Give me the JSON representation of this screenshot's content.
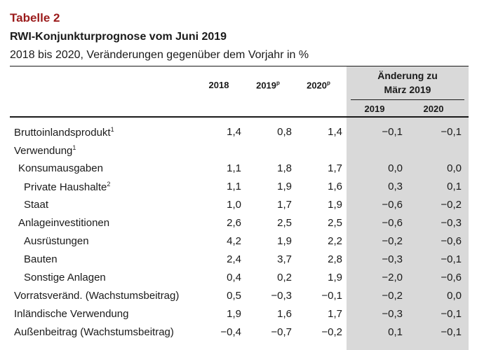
{
  "table_label": "Tabelle 2",
  "title": "RWI-Konjunkturprognose vom Juni 2019",
  "subtitle": "2018 bis 2020, Veränderungen gegenüber dem Vorjahr in %",
  "columns": {
    "y2018": "2018",
    "y2019": "2019",
    "y2019_sup": "p",
    "y2020": "2020",
    "y2020_sup": "p",
    "change_line1": "Änderung zu",
    "change_line2": "März 2019",
    "change_2019": "2019",
    "change_2020": "2020"
  },
  "rows": [
    {
      "label": "Bruttoinlandsprodukt",
      "sup": "1",
      "v2018": "1,4",
      "v2019": "0,8",
      "v2020": "1,4",
      "c2019": "−0,1",
      "c2020": "−0,1"
    },
    {
      "label": "Verwendung",
      "sup": "1",
      "v2018": "",
      "v2019": "",
      "v2020": "",
      "c2019": "",
      "c2020": ""
    },
    {
      "label": "Konsumausgaben",
      "sup": "",
      "v2018": "1,1",
      "v2019": "1,8",
      "v2020": "1,7",
      "c2019": "0,0",
      "c2020": "0,0"
    },
    {
      "label": "Private Haushalte",
      "sup": "2",
      "v2018": "1,1",
      "v2019": "1,9",
      "v2020": "1,6",
      "c2019": "0,3",
      "c2020": "0,1"
    },
    {
      "label": "Staat",
      "sup": "",
      "v2018": "1,0",
      "v2019": "1,7",
      "v2020": "1,9",
      "c2019": "−0,6",
      "c2020": "−0,2"
    },
    {
      "label": "Anlageinvestitionen",
      "sup": "",
      "v2018": "2,6",
      "v2019": "2,5",
      "v2020": "2,5",
      "c2019": "−0,6",
      "c2020": "−0,3"
    },
    {
      "label": "Ausrüstungen",
      "sup": "",
      "v2018": "4,2",
      "v2019": "1,9",
      "v2020": "2,2",
      "c2019": "−0,2",
      "c2020": "−0,6"
    },
    {
      "label": "Bauten",
      "sup": "",
      "v2018": "2,4",
      "v2019": "3,7",
      "v2020": "2,8",
      "c2019": "−0,3",
      "c2020": "−0,1"
    },
    {
      "label": "Sonstige Anlagen",
      "sup": "",
      "v2018": "0,4",
      "v2019": "0,2",
      "v2020": "1,9",
      "c2019": "−2,0",
      "c2020": "−0,6"
    },
    {
      "label": "Vorratsveränd. (Wachstumsbeitrag)",
      "sup": "",
      "v2018": "0,5",
      "v2019": "−0,3",
      "v2020": "−0,1",
      "c2019": "−0,2",
      "c2020": "0,0"
    },
    {
      "label": "Inländische Verwendung",
      "sup": "",
      "v2018": "1,9",
      "v2019": "1,6",
      "v2020": "1,7",
      "c2019": "−0,3",
      "c2020": "−0,1"
    },
    {
      "label": "Außenbeitrag (Wachstumsbeitrag)",
      "sup": "",
      "v2018": "−0,4",
      "v2019": "−0,7",
      "v2020": "−0,2",
      "c2019": "0,1",
      "c2020": "−0,1"
    }
  ]
}
